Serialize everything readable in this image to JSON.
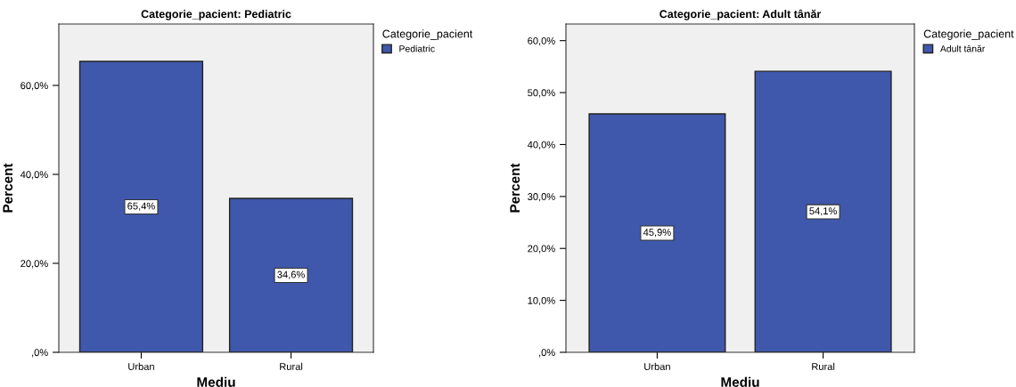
{
  "chart_data": [
    {
      "type": "bar",
      "title": "Categorie_pacient: Pediatric",
      "xlabel": "Mediu",
      "ylabel": "Percent",
      "legend_title": "Categorie_pacient",
      "legend": "top right",
      "categories": [
        "Urban",
        "Rural"
      ],
      "series": [
        {
          "name": "Pediatric",
          "color": "#3f58ab",
          "values": [
            65.4,
            34.6
          ],
          "value_labels": [
            "65,4%",
            "34,6%"
          ]
        }
      ],
      "ylim": [
        0,
        73.8
      ],
      "yticks": [
        {
          "value": 0,
          "label": ",0%"
        },
        {
          "value": 20,
          "label": "20,0%"
        },
        {
          "value": 40,
          "label": "40,0%"
        },
        {
          "value": 60,
          "label": "60,0%"
        }
      ],
      "grid": false
    },
    {
      "type": "bar",
      "title": "Categorie_pacient: Adult tânăr",
      "xlabel": "Mediu",
      "ylabel": "Percent",
      "legend_title": "Categorie_pacient",
      "legend": "top right",
      "categories": [
        "Urban",
        "Rural"
      ],
      "series": [
        {
          "name": "Adult tânăr",
          "color": "#3f58ab",
          "values": [
            45.9,
            54.1
          ],
          "value_labels": [
            "45,9%",
            "54,1%"
          ]
        }
      ],
      "ylim": [
        0,
        63.2
      ],
      "yticks": [
        {
          "value": 0,
          "label": ",0%"
        },
        {
          "value": 10,
          "label": "10,0%"
        },
        {
          "value": 20,
          "label": "20,0%"
        },
        {
          "value": 30,
          "label": "30,0%"
        },
        {
          "value": 40,
          "label": "40,0%"
        },
        {
          "value": 50,
          "label": "50,0%"
        },
        {
          "value": 60,
          "label": "60,0%"
        }
      ],
      "grid": false
    }
  ]
}
